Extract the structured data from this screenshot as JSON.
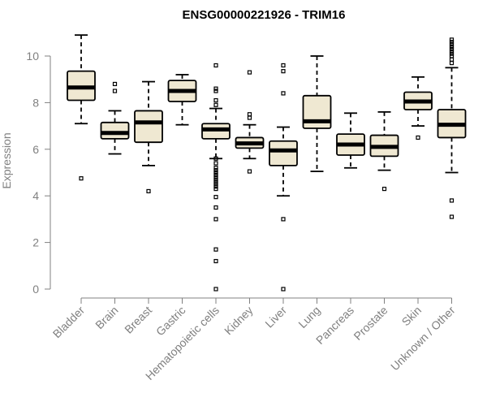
{
  "chart_data": {
    "type": "boxplot",
    "title": "ENSG00000221926 - TRIM16",
    "xlabel": "",
    "ylabel": "Expression",
    "ylim": [
      0,
      10.5
    ],
    "yticks": [
      0,
      2,
      4,
      6,
      8,
      10
    ],
    "colors": {
      "box_fill": "#efe8d2",
      "stroke": "#000000",
      "axis": "#808080"
    },
    "categories": [
      "Bladder",
      "Brain",
      "Breast",
      "Gastric",
      "Hematopoietic cells",
      "Kidney",
      "Liver",
      "Lung",
      "Pancreas",
      "Prostate",
      "Skin",
      "Unknown / Other"
    ],
    "boxes": [
      {
        "min": 7.1,
        "q1": 8.1,
        "median": 8.65,
        "q3": 9.35,
        "max": 10.9,
        "outliers": [
          4.75
        ]
      },
      {
        "min": 5.8,
        "q1": 6.45,
        "median": 6.7,
        "q3": 7.15,
        "max": 7.65,
        "outliers": [
          8.5,
          8.8
        ]
      },
      {
        "min": 5.3,
        "q1": 6.3,
        "median": 7.15,
        "q3": 7.65,
        "max": 8.9,
        "outliers": [
          4.2
        ]
      },
      {
        "min": 7.05,
        "q1": 8.05,
        "median": 8.5,
        "q3": 8.95,
        "max": 9.2,
        "outliers": []
      },
      {
        "min": 5.6,
        "q1": 6.45,
        "median": 6.85,
        "q3": 7.1,
        "max": 7.75,
        "outliers": [
          9.6,
          8.6,
          8.5,
          8.1,
          7.9,
          5.6,
          5.4,
          5.2,
          5.1,
          5.0,
          4.9,
          4.8,
          4.7,
          4.6,
          4.5,
          4.4,
          4.3,
          3.95,
          3.5,
          3.0,
          1.7,
          1.2,
          0.0
        ]
      },
      {
        "min": 5.6,
        "q1": 6.05,
        "median": 6.25,
        "q3": 6.5,
        "max": 7.05,
        "outliers": [
          9.3,
          7.5,
          7.35,
          5.05
        ]
      },
      {
        "min": 4.0,
        "q1": 5.3,
        "median": 5.95,
        "q3": 6.35,
        "max": 6.95,
        "outliers": [
          9.6,
          9.35,
          8.4,
          3.0,
          0.0
        ]
      },
      {
        "min": 5.05,
        "q1": 6.9,
        "median": 7.2,
        "q3": 8.3,
        "max": 10.0,
        "outliers": []
      },
      {
        "min": 5.2,
        "q1": 5.75,
        "median": 6.2,
        "q3": 6.65,
        "max": 7.55,
        "outliers": []
      },
      {
        "min": 5.1,
        "q1": 5.7,
        "median": 6.1,
        "q3": 6.6,
        "max": 7.6,
        "outliers": [
          4.3
        ]
      },
      {
        "min": 7.0,
        "q1": 7.7,
        "median": 8.05,
        "q3": 8.45,
        "max": 9.1,
        "outliers": [
          6.5
        ]
      },
      {
        "min": 5.0,
        "q1": 6.5,
        "median": 7.05,
        "q3": 7.7,
        "max": 9.5,
        "outliers": [
          10.7,
          10.6,
          10.5,
          10.4,
          10.3,
          10.2,
          10.1,
          10.0,
          9.85,
          9.7,
          3.8,
          3.1
        ]
      }
    ]
  }
}
